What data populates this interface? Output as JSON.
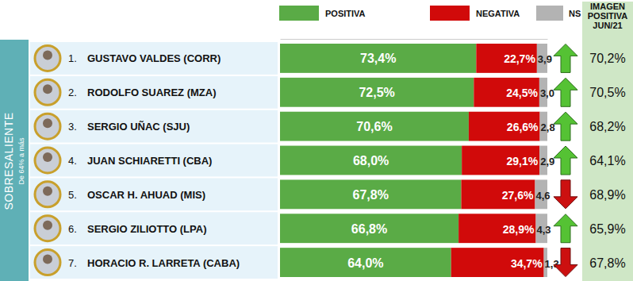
{
  "chart_data": {
    "type": "bar",
    "orientation": "horizontal",
    "stacked": true,
    "data_labels": true,
    "tick_labels": false,
    "legend": "top",
    "xlim": [
      0,
      100
    ],
    "group": {
      "title": "SOBRESALIENTE",
      "subtitle": "De 64% a más"
    },
    "ranks": [
      "1.",
      "2.",
      "3.",
      "4.",
      "5.",
      "6.",
      "7."
    ],
    "categories": [
      "GUSTAVO VALDES (CORR)",
      "RODOLFO SUAREZ (MZA)",
      "SERGIO UÑAC (SJU)",
      "JUAN SCHIARETTI (CBA)",
      "OSCAR H. AHUAD (MIS)",
      "SERGIO ZILIOTTO (LPA)",
      "HORACIO R. LARRETA (CABA)"
    ],
    "series": [
      {
        "name": "POSITIVA",
        "color": "#5aab46",
        "values": [
          73.4,
          72.5,
          70.6,
          68.0,
          67.8,
          66.8,
          64.0
        ],
        "value_labels": [
          "73,4%",
          "72,5%",
          "70,6%",
          "68,0%",
          "67,8%",
          "66,8%",
          "64,0%"
        ]
      },
      {
        "name": "NEGATIVA",
        "color": "#d10a0a",
        "values": [
          22.7,
          24.5,
          26.6,
          29.1,
          27.6,
          28.9,
          34.7
        ],
        "value_labels": [
          "22,7%",
          "24,5%",
          "26,6%",
          "29,1%",
          "27,6%",
          "28,9%",
          "34,7%"
        ]
      },
      {
        "name": "NS / NC",
        "color": "#b3b3b3",
        "values": [
          3.9,
          3.0,
          2.8,
          2.9,
          4.6,
          4.3,
          1.3
        ],
        "value_labels": [
          "3,9",
          "3,0",
          "2,8",
          "2,9",
          "4,6",
          "4,3",
          "1,3"
        ]
      }
    ],
    "comparison": {
      "title": "IMAGEN POSITIVA JUN/21",
      "values": [
        70.2,
        70.5,
        68.2,
        64.1,
        68.9,
        65.9,
        67.8
      ],
      "value_labels": [
        "70,2%",
        "70,5%",
        "68,2%",
        "64,1%",
        "68,9%",
        "65,9%",
        "67,8%"
      ]
    }
  }
}
